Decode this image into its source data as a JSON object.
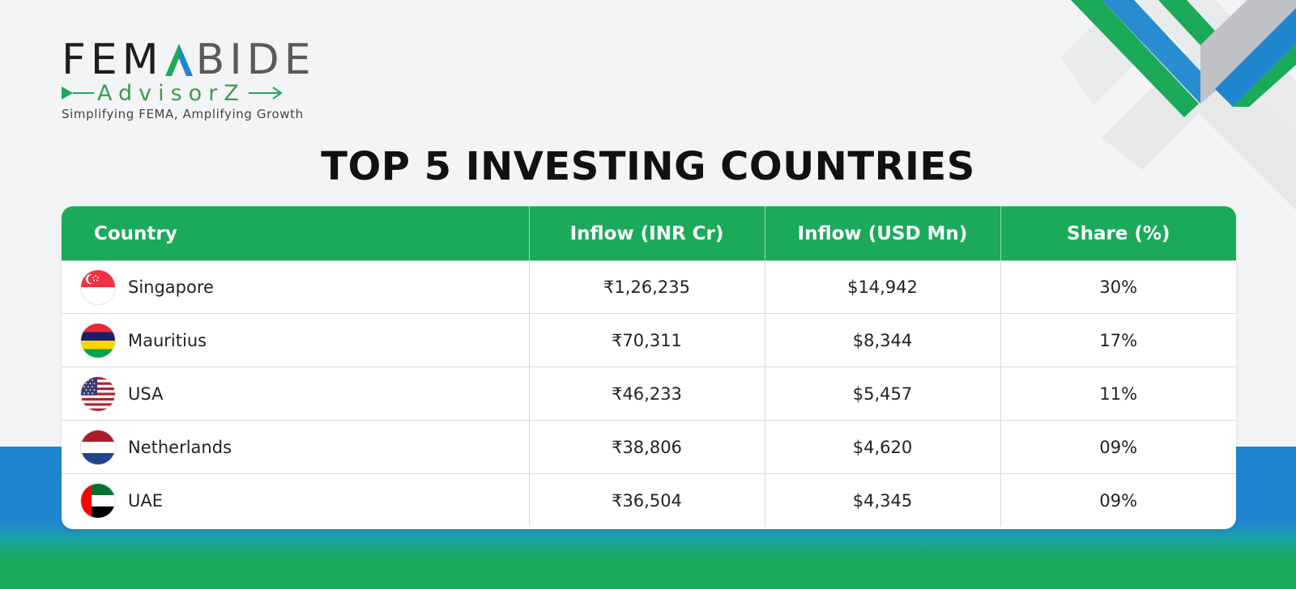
{
  "brand": {
    "name_prefix": "FEM",
    "name_suffix": "BIDE",
    "sub": "AdvisorZ",
    "tagline": "Simplifying FEMA, Amplifying Growth",
    "colors": {
      "green": "#1aaa5a",
      "blue": "#1f87cf",
      "dark": "#1e1e1e"
    }
  },
  "title": "TOP 5 INVESTING COUNTRIES",
  "chart_data": {
    "type": "table",
    "title": "TOP 5 INVESTING COUNTRIES",
    "columns": [
      "Country",
      "Inflow (INR Cr)",
      "Inflow (USD Mn)",
      "Share (%)"
    ],
    "rows": [
      {
        "country": "Singapore",
        "flag": "singapore-flag-icon",
        "inr": "₹1,26,235",
        "usd": "$14,942",
        "share": "30%"
      },
      {
        "country": "Mauritius",
        "flag": "mauritius-flag-icon",
        "inr": "₹70,311",
        "usd": "$8,344",
        "share": "17%"
      },
      {
        "country": "USA",
        "flag": "usa-flag-icon",
        "inr": "₹46,233",
        "usd": "$5,457",
        "share": "11%"
      },
      {
        "country": "Netherlands",
        "flag": "netherlands-flag-icon",
        "inr": "₹38,806",
        "usd": "$4,620",
        "share": "09%"
      },
      {
        "country": "UAE",
        "flag": "uae-flag-icon",
        "inr": "₹36,504",
        "usd": "$4,345",
        "share": "09%"
      }
    ]
  }
}
